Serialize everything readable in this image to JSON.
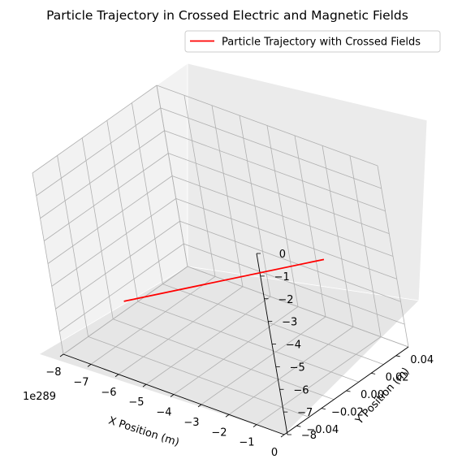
{
  "chart_data": {
    "type": "line",
    "projection": "3d",
    "title": "Particle Trajectory in Crossed Electric and Magnetic Fields",
    "xlabel": "X Position (m)",
    "ylabel": "Y Position (m)",
    "zlabel": "",
    "x_offset_label": "1e289",
    "x_ticks": [
      "−8",
      "−7",
      "−6",
      "−5",
      "−4",
      "−3",
      "−2",
      "−1",
      "0"
    ],
    "y_ticks": [
      "−0.04",
      "−0.02",
      "0.00",
      "0.02",
      "0.04"
    ],
    "z_ticks": [
      "0",
      "−1",
      "−2",
      "−3",
      "−4",
      "−5",
      "−6",
      "−7",
      "−8"
    ],
    "xlim": [
      -8,
      0
    ],
    "ylim": [
      -0.05,
      0.05
    ],
    "zlim": [
      -8,
      0
    ],
    "grid": true,
    "legend_position": "top-right",
    "series": [
      {
        "name": "Particle Trajectory with Crossed Fields",
        "color": "#ff0000",
        "points": [
          {
            "x": -8,
            "y": 0,
            "z": -7.6
          },
          {
            "x": 0,
            "y": 0,
            "z": -2.2
          }
        ]
      }
    ]
  }
}
